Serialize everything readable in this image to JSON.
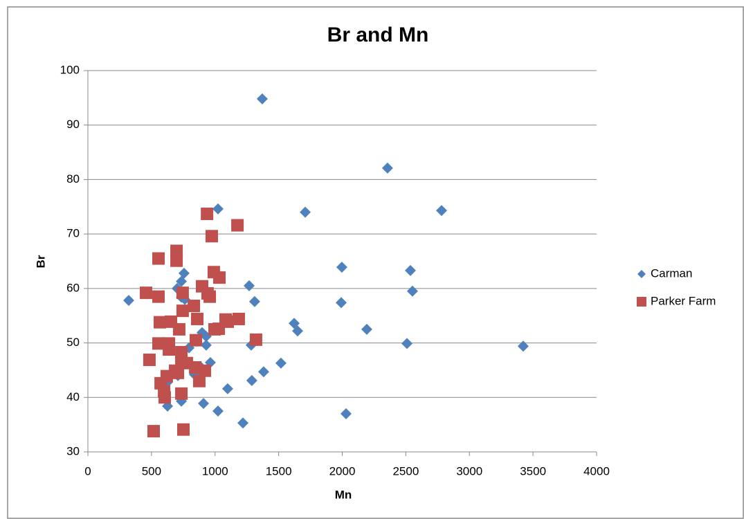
{
  "chart_data": {
    "type": "scatter",
    "title": "Br and Mn",
    "x_label": "Mn",
    "y_label": "Br",
    "xlim": [
      0,
      4000
    ],
    "xticks": [
      0,
      500,
      1000,
      1500,
      2000,
      2500,
      3000,
      3500,
      4000
    ],
    "ylim": [
      30,
      100
    ],
    "yticks": [
      30,
      40,
      50,
      60,
      70,
      80,
      90,
      100
    ],
    "grid": true,
    "legend": "right",
    "series": [
      {
        "name": "Carman",
        "color": "#4f81bd",
        "marker": "diamond",
        "x": [
          1371,
          2356,
          2781,
          1023,
          1709,
          1997,
          2536,
          2552,
          1992,
          1268,
          1311,
          1622,
          1649,
          2193,
          2509,
          3423,
          1284,
          1518,
          1382,
          1289,
          1099,
          1023,
          1219,
          2030,
          321,
          756,
          735,
          702,
          735,
          762,
          898,
          930,
          930,
          963,
          887,
          838,
          708,
          626,
          626,
          735,
          909,
          795
        ],
        "values": [
          94.8,
          82.1,
          74.3,
          74.6,
          74.0,
          63.9,
          63.3,
          59.5,
          57.4,
          60.5,
          57.6,
          53.6,
          52.2,
          52.5,
          49.9,
          49.4,
          49.6,
          46.3,
          44.7,
          43.1,
          41.6,
          37.5,
          35.3,
          37.0,
          57.8,
          62.8,
          61.3,
          60.0,
          58.4,
          58.0,
          51.9,
          51.2,
          49.6,
          46.4,
          45.6,
          44.2,
          44.0,
          42.8,
          38.4,
          39.3,
          38.9,
          49.1
        ]
      },
      {
        "name": "Parker Farm",
        "color": "#c0504d",
        "marker": "square",
        "x": [
          937,
          1176,
          974,
          697,
          697,
          555,
          990,
          1034,
          898,
          941,
          958,
          457,
          555,
          745,
          833,
          745,
          860,
          653,
          566,
          1083,
          1186,
          1099,
          996,
          1029,
          718,
          1322,
          849,
          555,
          637,
          637,
          735,
          484,
          735,
          778,
          844,
          920,
          686,
          708,
          620,
          876,
          572,
          599,
          604,
          735,
          517,
          751
        ],
        "values": [
          73.7,
          71.6,
          69.6,
          66.9,
          65.1,
          65.5,
          63.0,
          62.0,
          60.4,
          59.1,
          58.5,
          59.2,
          58.5,
          59.2,
          56.8,
          55.9,
          54.4,
          53.9,
          53.8,
          54.3,
          54.4,
          53.9,
          52.5,
          52.6,
          52.5,
          50.6,
          50.5,
          49.9,
          49.9,
          48.8,
          48.3,
          46.9,
          46.6,
          46.3,
          45.5,
          44.9,
          44.9,
          44.5,
          43.9,
          43.0,
          42.6,
          41.1,
          40.0,
          40.7,
          33.8,
          34.1
        ]
      }
    ]
  }
}
